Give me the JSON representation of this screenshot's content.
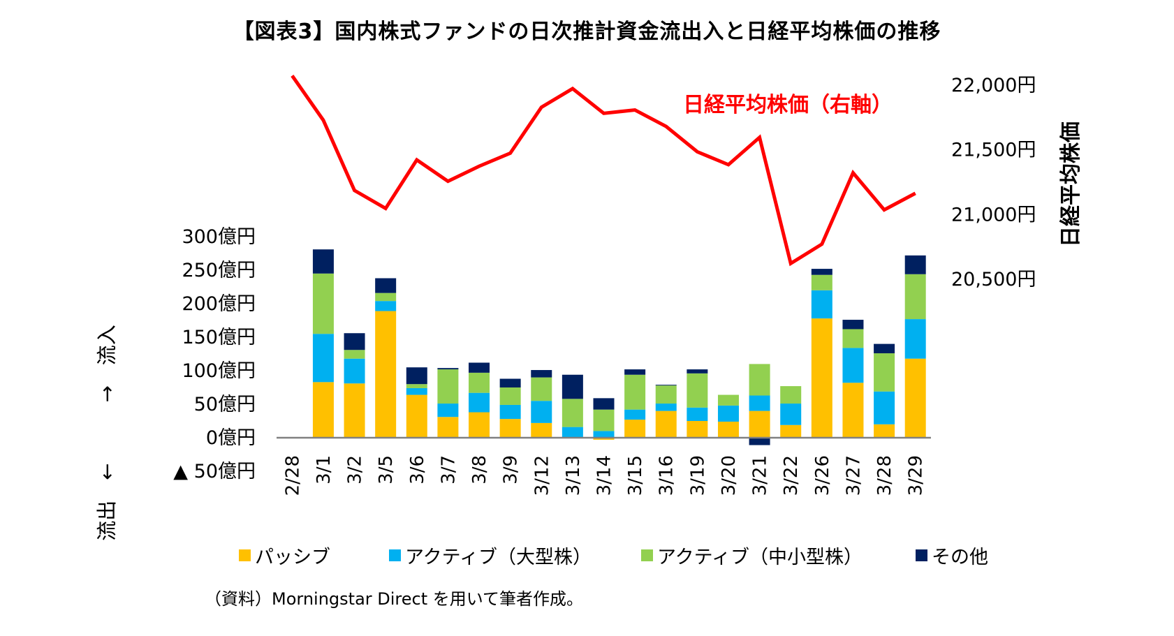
{
  "title": "【図表3】国内株式ファンドの日次推計資金流出入と日経平均株価の推移",
  "source": "（資料）Morningstar Direct を用いて筆者作成。",
  "chart_data": {
    "type": "bar+line",
    "categories": [
      "2/28",
      "3/1",
      "3/2",
      "3/5",
      "3/6",
      "3/7",
      "3/8",
      "3/9",
      "3/12",
      "3/13",
      "3/14",
      "3/15",
      "3/16",
      "3/19",
      "3/20",
      "3/21",
      "3/22",
      "3/26",
      "3/27",
      "3/28",
      "3/29"
    ],
    "left_axis": {
      "ylim": [
        -50,
        300
      ],
      "ticks": [
        300,
        250,
        200,
        150,
        100,
        50,
        0,
        -50
      ],
      "tick_labels": [
        "300億円",
        "250億円",
        "200億円",
        "150億円",
        "100億円",
        "50億円",
        "0億円",
        "▲ 50億円"
      ],
      "label": "流出　←　　　→　流入"
    },
    "right_axis": {
      "ticks": [
        22000,
        21500,
        21000,
        20500
      ],
      "tick_labels": [
        "22,000円",
        "21,500円",
        "21,000円",
        "20,500円"
      ],
      "label": "日経平均株価"
    },
    "series": [
      {
        "name": "パッシブ",
        "kind": "stacked-bar",
        "color": "#FFC000",
        "values": [
          0,
          83,
          81,
          189,
          64,
          31,
          38,
          28,
          22,
          1,
          -3,
          27,
          40,
          25,
          24,
          40,
          19,
          178,
          82,
          20,
          118
        ]
      },
      {
        "name": "アクティブ（大型株）",
        "kind": "stacked-bar",
        "color": "#00B0F0",
        "values": [
          0,
          72,
          37,
          15,
          10,
          20,
          29,
          21,
          33,
          15,
          10,
          15,
          11,
          20,
          24,
          23,
          32,
          42,
          52,
          49,
          59
        ]
      },
      {
        "name": "アクティブ（中小型株）",
        "kind": "stacked-bar",
        "color": "#92D050",
        "values": [
          0,
          90,
          13,
          12,
          6,
          51,
          30,
          26,
          35,
          42,
          32,
          52,
          27,
          51,
          16,
          47,
          26,
          23,
          28,
          57,
          67
        ]
      },
      {
        "name": "その他",
        "kind": "stacked-bar",
        "color": "#002060",
        "values": [
          0,
          36,
          25,
          22,
          25,
          2,
          15,
          13,
          11,
          36,
          17,
          8,
          1,
          6,
          0,
          -11,
          -1,
          9,
          14,
          14,
          28
        ]
      },
      {
        "name": "日経平均株価（右軸）",
        "kind": "line",
        "axis": "right",
        "color": "#FF0000",
        "values": [
          22068,
          21724,
          21181,
          21042,
          21417,
          21252,
          21368,
          21469,
          21824,
          21968,
          21777,
          21803,
          21676,
          21480,
          21380,
          21591,
          20617,
          20766,
          21317,
          21031,
          21159
        ]
      }
    ],
    "legend_position": "bottom",
    "grid": false
  }
}
